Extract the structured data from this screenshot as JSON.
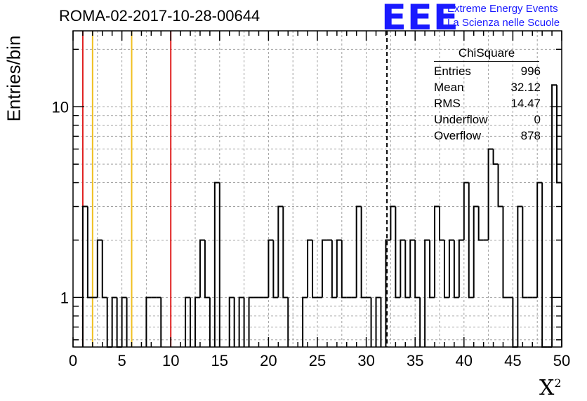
{
  "header": {
    "run_id": "ROMA-02-2017-10-28-00644",
    "logo_text": "EEE",
    "logo_name": "Extreme Energy Events",
    "logo_slogan": "La Scienza nelle Scuole"
  },
  "stats": {
    "title": "ChiSquare",
    "rows": [
      {
        "label": "Entries",
        "value": "996"
      },
      {
        "label": "Mean",
        "value": "32.12"
      },
      {
        "label": "RMS",
        "value": "14.47"
      },
      {
        "label": "Underflow",
        "value": "0"
      },
      {
        "label": "Overflow",
        "value": "878"
      }
    ]
  },
  "colors": {
    "hist": "#000000",
    "red_line": "#e02020",
    "yellow_line": "#f0c020",
    "grid": "#a0a0a0"
  },
  "chart_data": {
    "type": "bar",
    "xlabel": "X",
    "xlabel_sup": "2",
    "ylabel": "Entries/bin",
    "xlim": [
      0,
      50
    ],
    "ylim": [
      0.55,
      25
    ],
    "yscale": "log",
    "grid": true,
    "bin_width": 0.5,
    "x_ticks": [
      "0",
      "5",
      "10",
      "15",
      "20",
      "25",
      "30",
      "35",
      "40",
      "45",
      "50"
    ],
    "y_ticks": [
      {
        "value": 1,
        "label": "1"
      },
      {
        "value": 10,
        "label": "10"
      }
    ],
    "vertical_lines": [
      {
        "x": 1,
        "color": "red"
      },
      {
        "x": 2,
        "color": "yellow"
      },
      {
        "x": 6,
        "color": "yellow"
      },
      {
        "x": 10,
        "color": "red"
      },
      {
        "x": 32.12,
        "color": "black",
        "style": "dashed"
      }
    ],
    "bins": [
      {
        "x": 1.0,
        "y": 3
      },
      {
        "x": 1.5,
        "y": 1
      },
      {
        "x": 2.0,
        "y": 1
      },
      {
        "x": 2.5,
        "y": 2
      },
      {
        "x": 3.0,
        "y": 1
      },
      {
        "x": 3.5,
        "y": 0
      },
      {
        "x": 4.0,
        "y": 1
      },
      {
        "x": 4.5,
        "y": 0
      },
      {
        "x": 5.0,
        "y": 1
      },
      {
        "x": 7.5,
        "y": 1
      },
      {
        "x": 8.0,
        "y": 1
      },
      {
        "x": 8.5,
        "y": 1
      },
      {
        "x": 11.5,
        "y": 1
      },
      {
        "x": 12.5,
        "y": 1
      },
      {
        "x": 13.0,
        "y": 2
      },
      {
        "x": 13.5,
        "y": 1
      },
      {
        "x": 14.5,
        "y": 4
      },
      {
        "x": 16.0,
        "y": 1
      },
      {
        "x": 17.0,
        "y": 1
      },
      {
        "x": 18.0,
        "y": 1
      },
      {
        "x": 18.5,
        "y": 1
      },
      {
        "x": 19.0,
        "y": 1
      },
      {
        "x": 19.5,
        "y": 1
      },
      {
        "x": 20.0,
        "y": 2
      },
      {
        "x": 20.5,
        "y": 1
      },
      {
        "x": 21.0,
        "y": 3
      },
      {
        "x": 21.5,
        "y": 1
      },
      {
        "x": 23.5,
        "y": 1
      },
      {
        "x": 24.0,
        "y": 2
      },
      {
        "x": 24.5,
        "y": 1
      },
      {
        "x": 25.0,
        "y": 1
      },
      {
        "x": 25.5,
        "y": 2
      },
      {
        "x": 26.0,
        "y": 2
      },
      {
        "x": 26.5,
        "y": 1
      },
      {
        "x": 27.0,
        "y": 2
      },
      {
        "x": 27.5,
        "y": 1
      },
      {
        "x": 28.0,
        "y": 1
      },
      {
        "x": 28.5,
        "y": 1
      },
      {
        "x": 29.0,
        "y": 3
      },
      {
        "x": 29.5,
        "y": 1
      },
      {
        "x": 30.0,
        "y": 1
      },
      {
        "x": 31.0,
        "y": 1
      },
      {
        "x": 32.0,
        "y": 2
      },
      {
        "x": 32.5,
        "y": 3
      },
      {
        "x": 33.0,
        "y": 1
      },
      {
        "x": 33.5,
        "y": 2
      },
      {
        "x": 34.0,
        "y": 1
      },
      {
        "x": 34.5,
        "y": 2
      },
      {
        "x": 35.0,
        "y": 1
      },
      {
        "x": 36.0,
        "y": 2
      },
      {
        "x": 36.5,
        "y": 1
      },
      {
        "x": 37.0,
        "y": 3
      },
      {
        "x": 37.5,
        "y": 2
      },
      {
        "x": 38.0,
        "y": 1
      },
      {
        "x": 38.5,
        "y": 2
      },
      {
        "x": 39.0,
        "y": 1
      },
      {
        "x": 39.5,
        "y": 2
      },
      {
        "x": 40.0,
        "y": 4
      },
      {
        "x": 40.5,
        "y": 1
      },
      {
        "x": 41.0,
        "y": 3
      },
      {
        "x": 41.5,
        "y": 2
      },
      {
        "x": 42.0,
        "y": 2
      },
      {
        "x": 42.5,
        "y": 6
      },
      {
        "x": 43.0,
        "y": 5
      },
      {
        "x": 43.5,
        "y": 3
      },
      {
        "x": 44.0,
        "y": 1
      },
      {
        "x": 44.5,
        "y": 1
      },
      {
        "x": 45.0,
        "y": 0
      },
      {
        "x": 45.5,
        "y": 3
      },
      {
        "x": 46.0,
        "y": 1
      },
      {
        "x": 46.5,
        "y": 1
      },
      {
        "x": 47.0,
        "y": 1
      },
      {
        "x": 47.5,
        "y": 4
      },
      {
        "x": 48.0,
        "y": 0
      },
      {
        "x": 48.5,
        "y": 0
      },
      {
        "x": 49.0,
        "y": 13
      },
      {
        "x": 49.5,
        "y": 4
      }
    ]
  }
}
